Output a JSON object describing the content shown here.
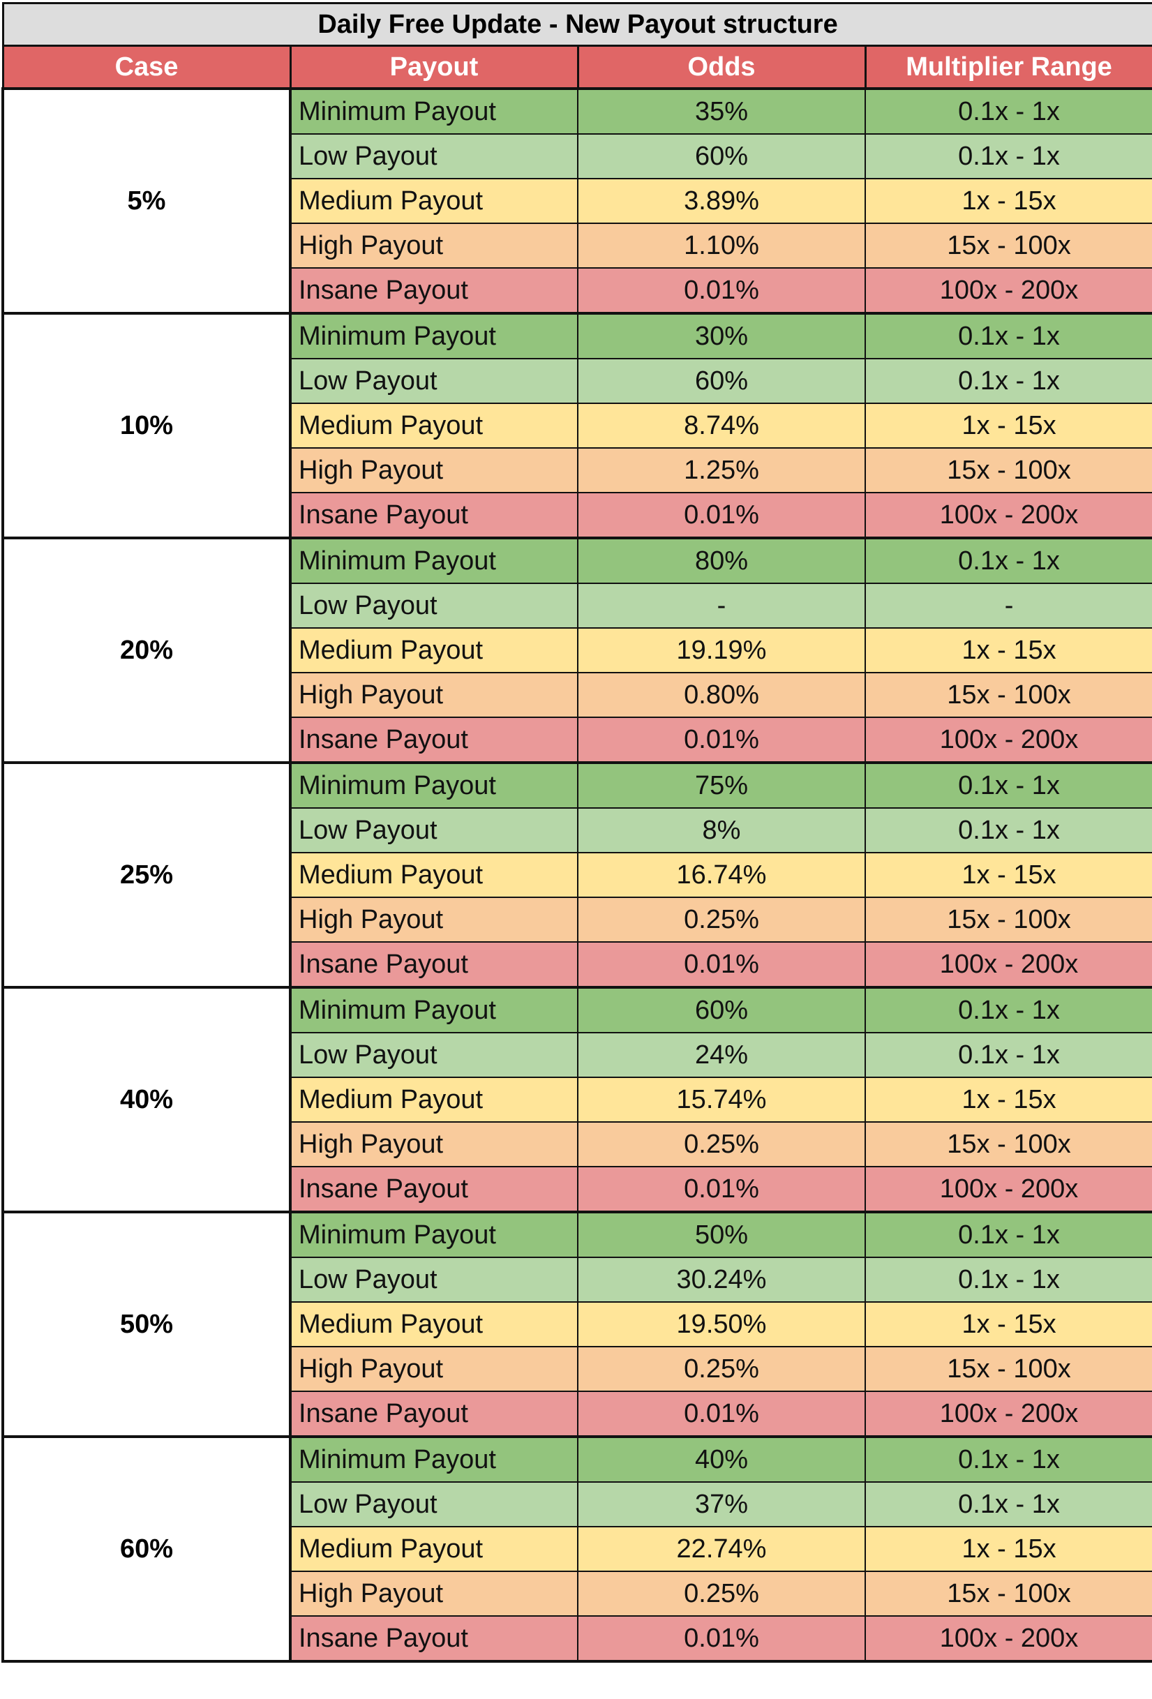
{
  "title": "Daily Free Update - New Payout structure",
  "headers": {
    "case": "Case",
    "payout": "Payout",
    "odds": "Odds",
    "range": "Multiplier Range"
  },
  "tier_colors": {
    "Minimum Payout": "#93c47d",
    "Low Payout": "#b6d7a8",
    "Medium Payout": "#ffe599",
    "High Payout": "#f9cb9c",
    "Insane Payout": "#ea9999"
  },
  "cases": [
    {
      "case": "5%",
      "rows": [
        {
          "payout": "Minimum Payout",
          "odds": "35%",
          "range": "0.1x - 1x"
        },
        {
          "payout": "Low Payout",
          "odds": "60%",
          "range": "0.1x - 1x"
        },
        {
          "payout": "Medium Payout",
          "odds": "3.89%",
          "range": "1x - 15x"
        },
        {
          "payout": "High Payout",
          "odds": "1.10%",
          "range": "15x - 100x"
        },
        {
          "payout": "Insane Payout",
          "odds": "0.01%",
          "range": "100x - 200x"
        }
      ]
    },
    {
      "case": "10%",
      "rows": [
        {
          "payout": "Minimum Payout",
          "odds": "30%",
          "range": "0.1x - 1x"
        },
        {
          "payout": "Low Payout",
          "odds": "60%",
          "range": "0.1x - 1x"
        },
        {
          "payout": "Medium Payout",
          "odds": "8.74%",
          "range": "1x - 15x"
        },
        {
          "payout": "High Payout",
          "odds": "1.25%",
          "range": "15x - 100x"
        },
        {
          "payout": "Insane Payout",
          "odds": "0.01%",
          "range": "100x - 200x"
        }
      ]
    },
    {
      "case": "20%",
      "rows": [
        {
          "payout": "Minimum Payout",
          "odds": "80%",
          "range": "0.1x - 1x"
        },
        {
          "payout": "Low Payout",
          "odds": "-",
          "range": "-"
        },
        {
          "payout": "Medium Payout",
          "odds": "19.19%",
          "range": "1x - 15x"
        },
        {
          "payout": "High Payout",
          "odds": "0.80%",
          "range": "15x - 100x"
        },
        {
          "payout": "Insane Payout",
          "odds": "0.01%",
          "range": "100x - 200x"
        }
      ]
    },
    {
      "case": "25%",
      "rows": [
        {
          "payout": "Minimum Payout",
          "odds": "75%",
          "range": "0.1x - 1x"
        },
        {
          "payout": "Low Payout",
          "odds": "8%",
          "range": "0.1x - 1x"
        },
        {
          "payout": "Medium Payout",
          "odds": "16.74%",
          "range": "1x - 15x"
        },
        {
          "payout": "High Payout",
          "odds": "0.25%",
          "range": "15x - 100x"
        },
        {
          "payout": "Insane Payout",
          "odds": "0.01%",
          "range": "100x - 200x"
        }
      ]
    },
    {
      "case": "40%",
      "rows": [
        {
          "payout": "Minimum Payout",
          "odds": "60%",
          "range": "0.1x - 1x"
        },
        {
          "payout": "Low Payout",
          "odds": "24%",
          "range": "0.1x - 1x"
        },
        {
          "payout": "Medium Payout",
          "odds": "15.74%",
          "range": "1x - 15x"
        },
        {
          "payout": "High Payout",
          "odds": "0.25%",
          "range": "15x - 100x"
        },
        {
          "payout": "Insane Payout",
          "odds": "0.01%",
          "range": "100x - 200x"
        }
      ]
    },
    {
      "case": "50%",
      "rows": [
        {
          "payout": "Minimum Payout",
          "odds": "50%",
          "range": "0.1x - 1x"
        },
        {
          "payout": "Low Payout",
          "odds": "30.24%",
          "range": "0.1x - 1x"
        },
        {
          "payout": "Medium Payout",
          "odds": "19.50%",
          "range": "1x - 15x"
        },
        {
          "payout": "High Payout",
          "odds": "0.25%",
          "range": "15x - 100x"
        },
        {
          "payout": "Insane Payout",
          "odds": "0.01%",
          "range": "100x - 200x"
        }
      ]
    },
    {
      "case": "60%",
      "rows": [
        {
          "payout": "Minimum Payout",
          "odds": "40%",
          "range": "0.1x - 1x"
        },
        {
          "payout": "Low Payout",
          "odds": "37%",
          "range": "0.1x - 1x"
        },
        {
          "payout": "Medium Payout",
          "odds": "22.74%",
          "range": "1x - 15x"
        },
        {
          "payout": "High Payout",
          "odds": "0.25%",
          "range": "15x - 100x"
        },
        {
          "payout": "Insane Payout",
          "odds": "0.01%",
          "range": "100x - 200x"
        }
      ]
    }
  ]
}
